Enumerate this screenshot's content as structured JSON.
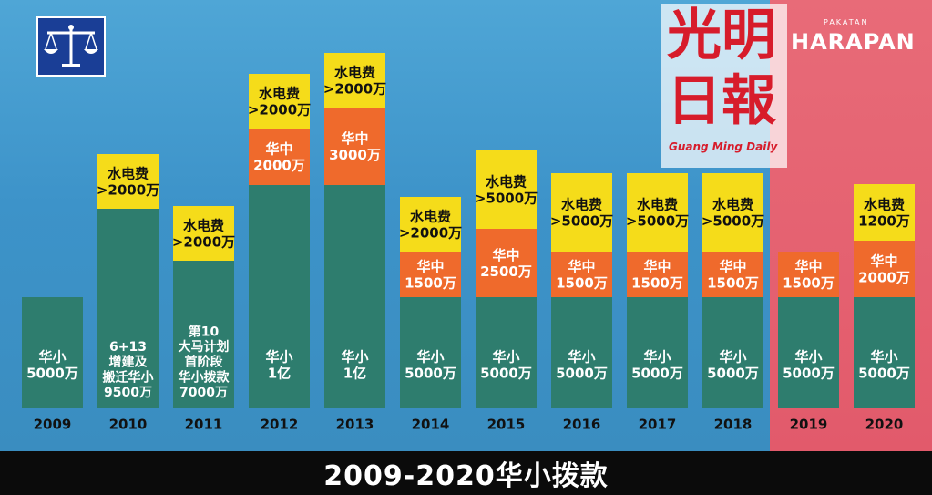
{
  "caption": "2009-2020华小拨款",
  "logos": {
    "left_party_icon": "scales-icon",
    "right_party_name": "HARAPAN",
    "right_party_prefix": "PAKATAN",
    "newspaper_name_line1": "光明",
    "newspaper_name_line2": "日報",
    "newspaper_name_en": "Guang Ming Daily"
  },
  "colors": {
    "teal": "#2e7d6e",
    "orange": "#ef6a2c",
    "yellow": "#f5dc1a",
    "blue_background": "#3d93c9",
    "red_background": "#e25a6b"
  },
  "chart_data": {
    "type": "bar",
    "stacked": true,
    "unit": "万",
    "categories": [
      "2009",
      "2010",
      "2011",
      "2012",
      "2013",
      "2014",
      "2015",
      "2016",
      "2017",
      "2018",
      "2019",
      "2020"
    ],
    "series": [
      {
        "key": "school",
        "values": [
          5000,
          9500,
          7000,
          10000,
          10000,
          5000,
          5000,
          5000,
          5000,
          5000,
          5000,
          5000
        ],
        "labels": [
          "华小\n5000万",
          "6+13\n增建及\n搬迁华小\n9500万",
          "第10\n大马计划\n首阶段\n华小拨款\n7000万",
          "华小\n1亿",
          "华小\n1亿",
          "华小\n5000万",
          "华小\n5000万",
          "华小\n5000万",
          "华小\n5000万",
          "华小\n5000万",
          "华小\n5000万",
          "华小\n5000万"
        ]
      },
      {
        "key": "middle",
        "values": [
          0,
          0,
          0,
          2000,
          3000,
          1500,
          2500,
          1500,
          1500,
          1500,
          1500,
          2000
        ],
        "labels": [
          "",
          "",
          "",
          "华中\n2000万",
          "华中\n3000万",
          "华中\n1500万",
          "华中\n2500万",
          "华中\n1500万",
          "华中\n1500万",
          "华中\n1500万",
          "华中\n1500万",
          "华中\n2000万"
        ]
      },
      {
        "key": "utilities",
        "values": [
          0,
          2000,
          2000,
          2000,
          2000,
          2000,
          5000,
          5000,
          5000,
          5000,
          0,
          1200
        ],
        "labels": [
          "",
          "水电费\n>2000万",
          "水电费\n>2000万",
          "水电费\n>2000万",
          "水电费\n>2000万",
          "水电费\n>2000万",
          "水电费\n>5000万",
          "水电费\n>5000万",
          "水电费\n>5000万",
          "水电费\n>5000万",
          "",
          "水电费\n1200万"
        ]
      }
    ],
    "government": [
      "BN",
      "BN",
      "BN",
      "BN",
      "BN",
      "BN",
      "BN",
      "BN",
      "BN",
      "BN",
      "PH",
      "PH"
    ]
  }
}
